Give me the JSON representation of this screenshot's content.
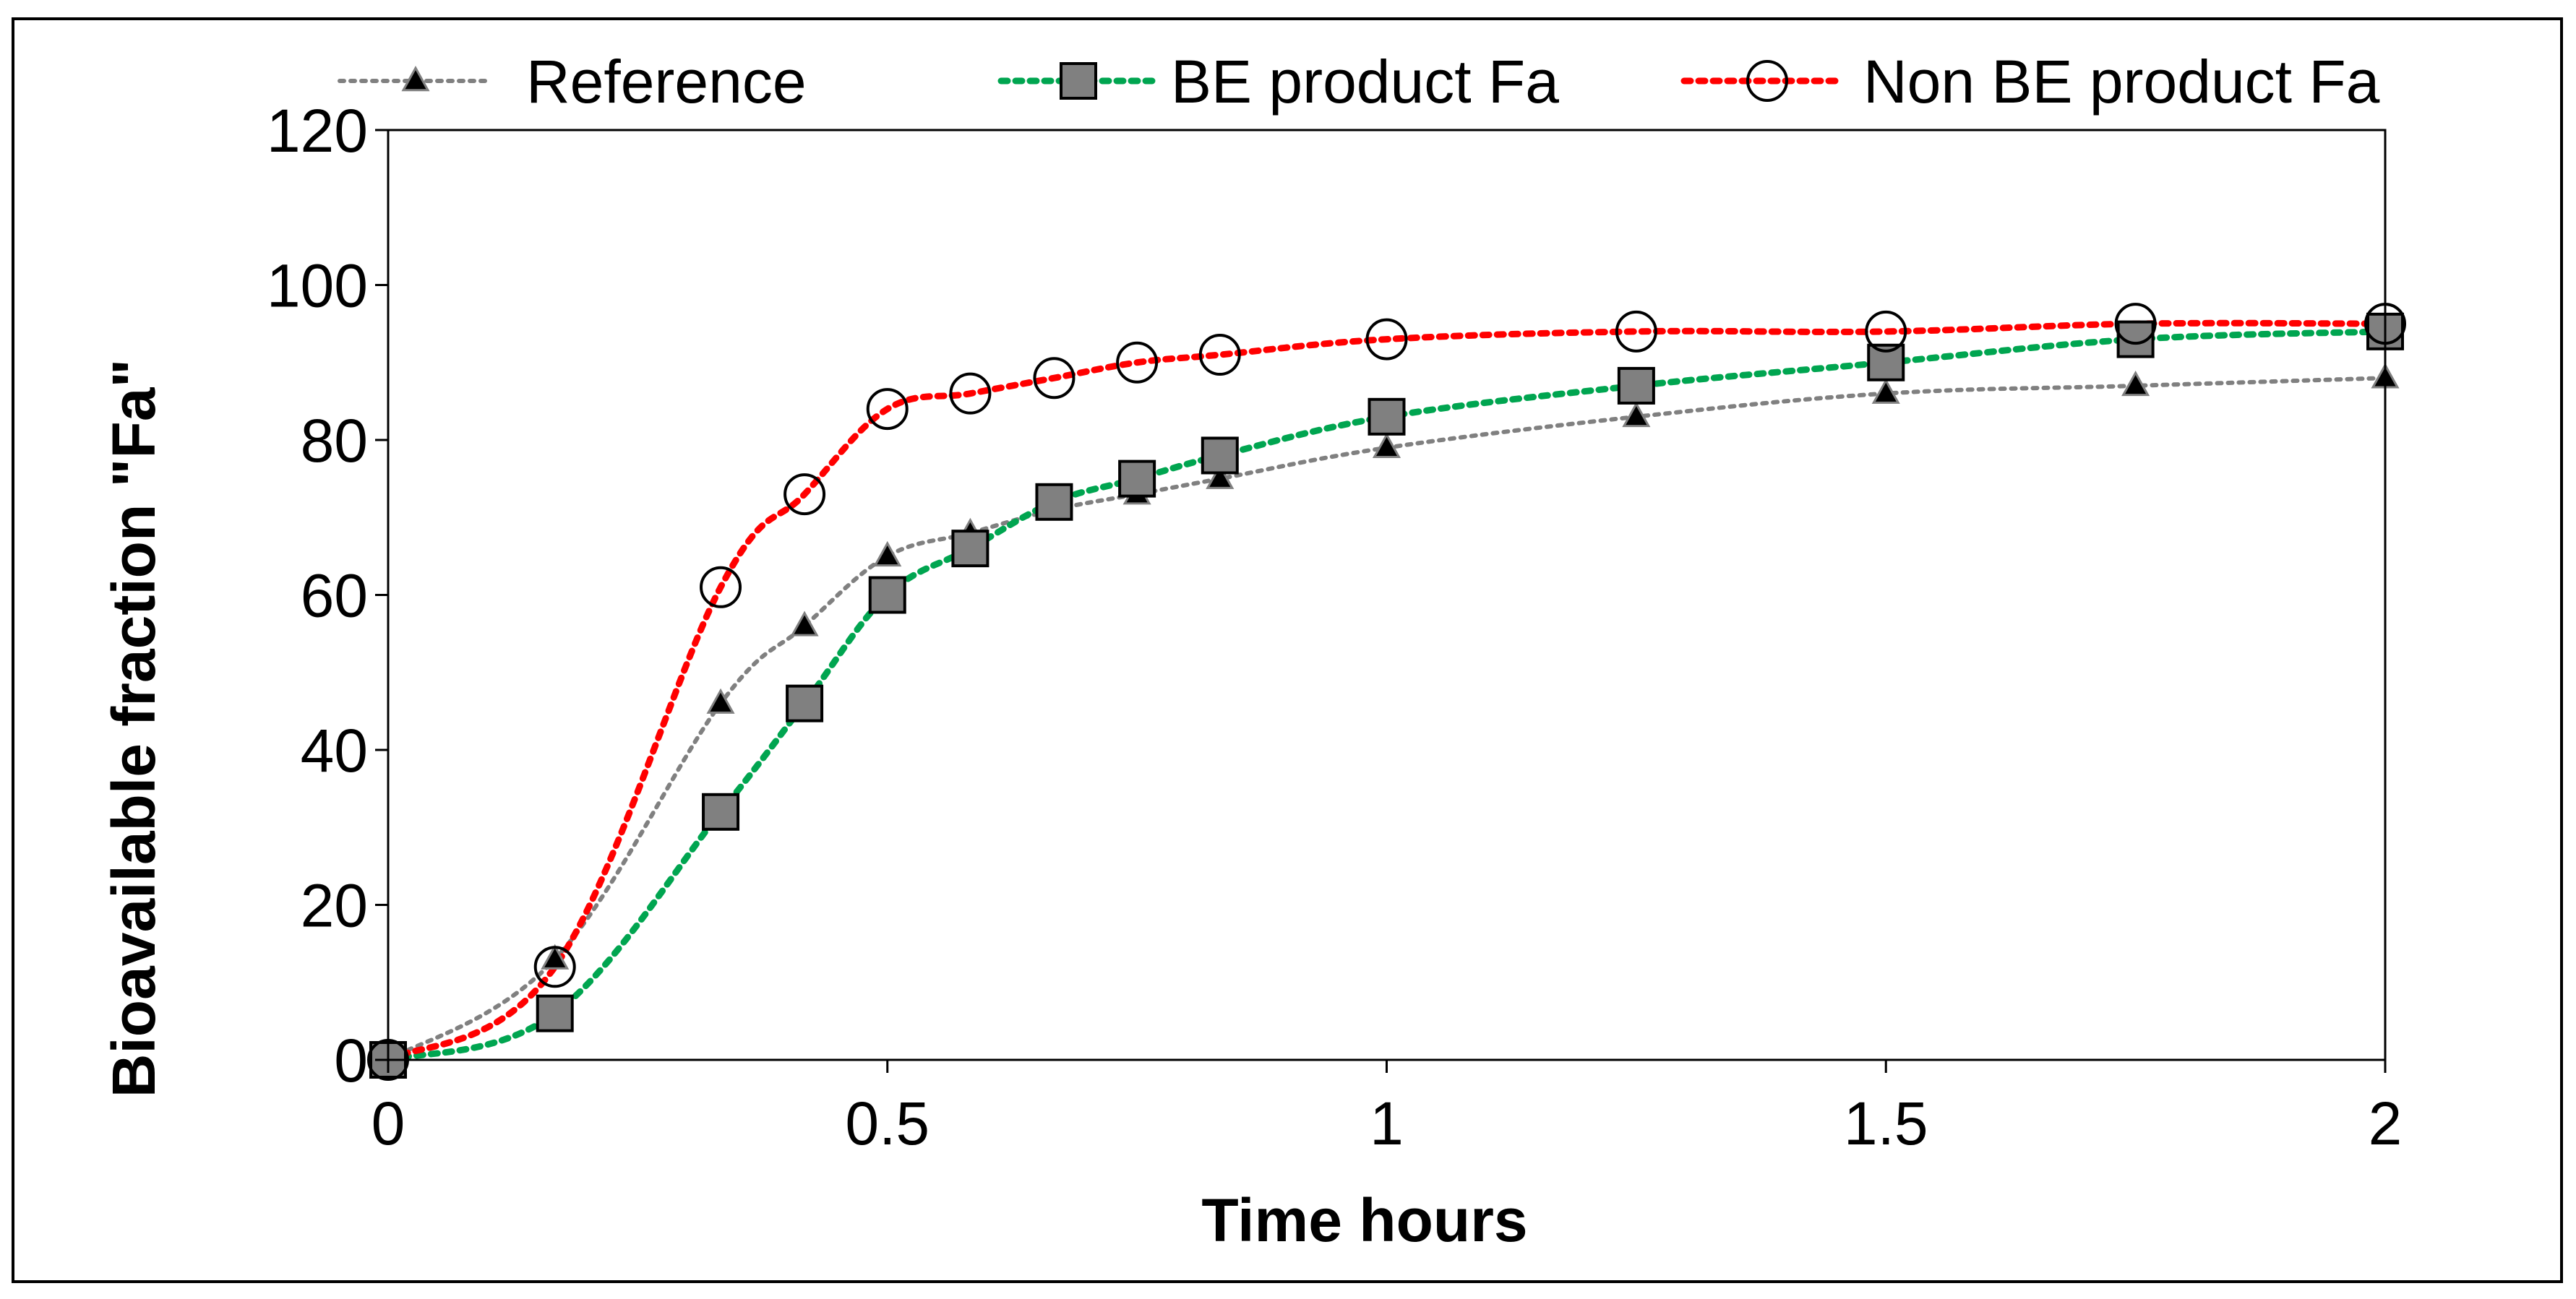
{
  "chart_data": {
    "type": "line",
    "title": "",
    "xlabel": "Time hours",
    "ylabel": "Bioavailable fraction \"Fa\"",
    "xlim": [
      0,
      2
    ],
    "ylim": [
      0,
      120
    ],
    "xticks": [
      0,
      0.5,
      1,
      1.5,
      2
    ],
    "xtick_labels": [
      "0",
      "0.5",
      "1",
      "1.5",
      "2"
    ],
    "yticks": [
      0,
      20,
      40,
      60,
      80,
      100,
      120
    ],
    "ytick_labels": [
      "0",
      "20",
      "40",
      "60",
      "80",
      "100",
      "120"
    ],
    "grid": false,
    "legend_position": "top",
    "series": [
      {
        "name": "Reference",
        "color": "#808080",
        "marker": "triangle",
        "x": [
          0,
          0.167,
          0.333,
          0.417,
          0.5,
          0.583,
          0.667,
          0.75,
          0.833,
          1,
          1.25,
          1.5,
          1.75,
          2
        ],
        "y": [
          0,
          13,
          46,
          56,
          65,
          68,
          71,
          73,
          75,
          79,
          83,
          86,
          87,
          88
        ]
      },
      {
        "name": "BE product Fa",
        "color": "#00a550",
        "marker": "square",
        "x": [
          0,
          0.167,
          0.333,
          0.417,
          0.5,
          0.583,
          0.667,
          0.75,
          0.833,
          1,
          1.25,
          1.5,
          1.75,
          2
        ],
        "y": [
          0,
          6,
          32,
          46,
          60,
          66,
          72,
          75,
          78,
          83,
          87,
          90,
          93,
          94
        ]
      },
      {
        "name": "Non BE product Fa",
        "color": "#ff0000",
        "marker": "circle",
        "x": [
          0,
          0.167,
          0.333,
          0.417,
          0.5,
          0.583,
          0.667,
          0.75,
          0.833,
          1,
          1.25,
          1.5,
          1.75,
          2
        ],
        "y": [
          0,
          12,
          61,
          73,
          84,
          86,
          88,
          90,
          91,
          93,
          94,
          94,
          95,
          95
        ]
      }
    ]
  }
}
